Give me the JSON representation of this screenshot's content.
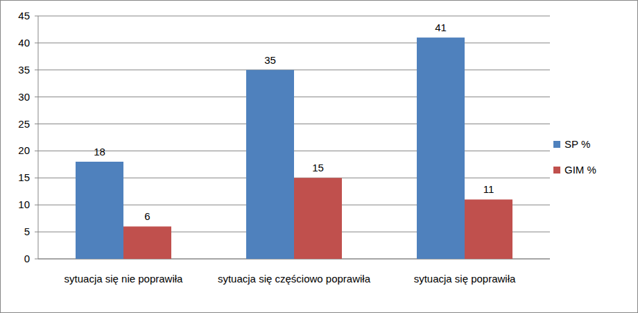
{
  "chart_data": {
    "type": "bar",
    "categories": [
      "sytuacja się nie poprawiła",
      "sytuacja się częściowo poprawiła",
      "sytuacja się poprawiła"
    ],
    "series": [
      {
        "name": "SP %",
        "color": "#4f81bd",
        "values": [
          18,
          35,
          41
        ]
      },
      {
        "name": "GIM %",
        "color": "#c0504d",
        "values": [
          6,
          15,
          11
        ]
      }
    ],
    "ylim": [
      0,
      45
    ],
    "yticks": [
      0,
      5,
      10,
      15,
      20,
      25,
      30,
      35,
      40,
      45
    ],
    "grid": true,
    "data_labels": true,
    "legend": "right"
  }
}
